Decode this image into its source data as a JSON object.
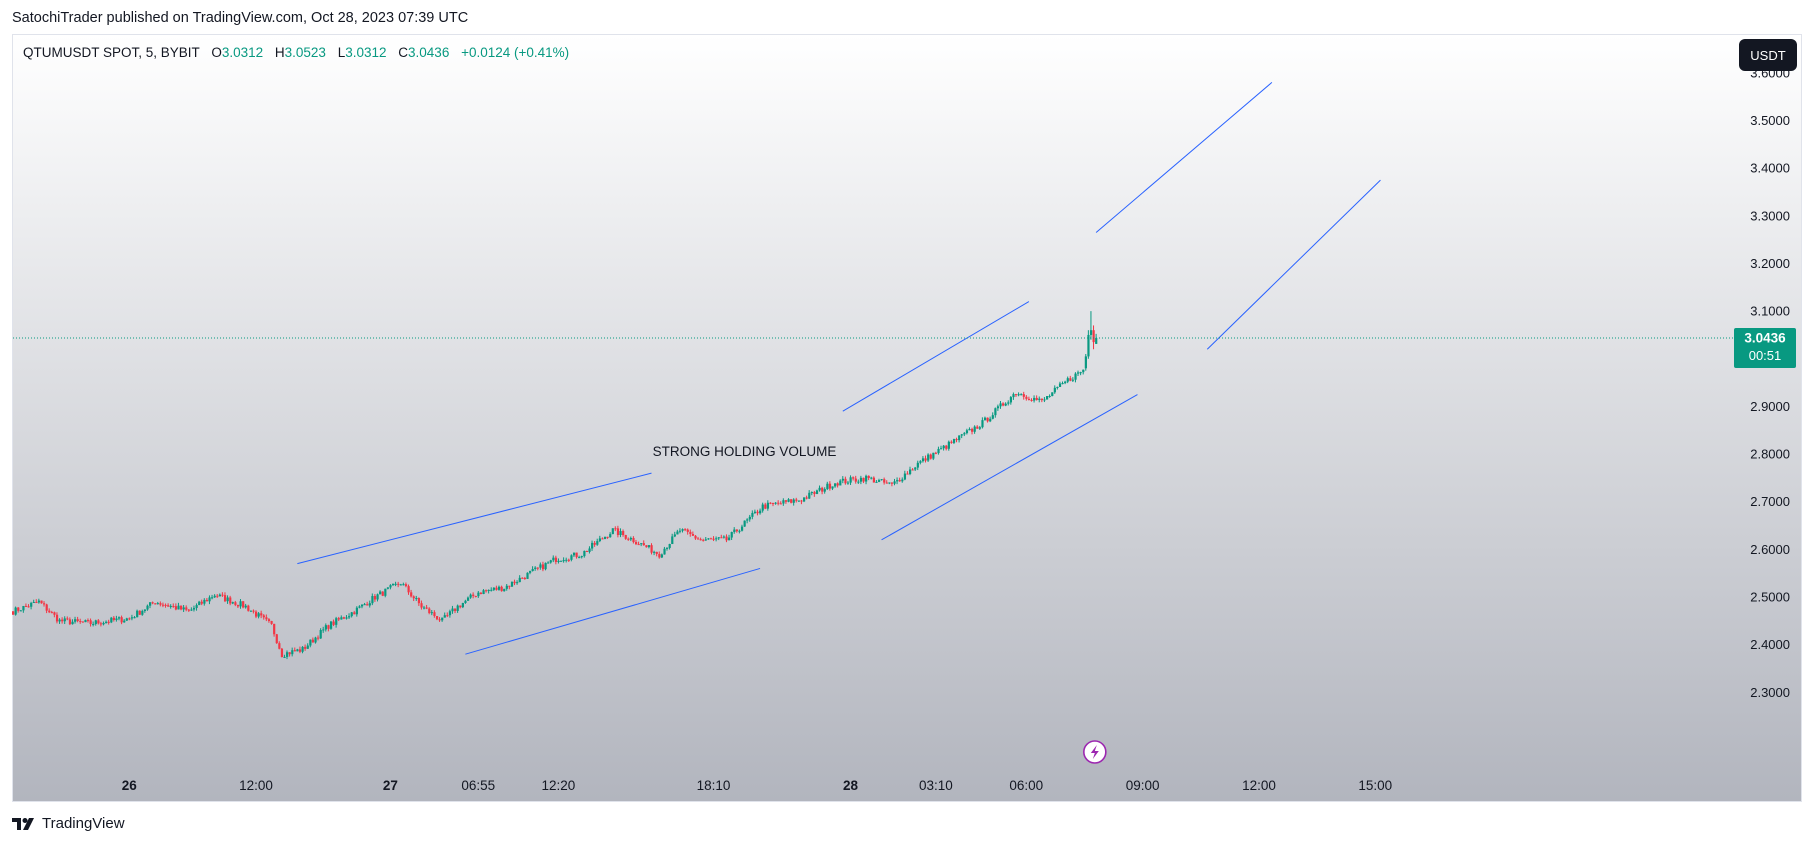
{
  "header": {
    "published_text": "SatochiTrader published on TradingView.com, Oct 28, 2023 07:39 UTC"
  },
  "legend": {
    "symbol": "QTUMUSDT SPOT, 5, BYBIT",
    "o_label": "O",
    "o_value": "3.0312",
    "h_label": "H",
    "h_value": "3.0523",
    "l_label": "L",
    "l_value": "3.0312",
    "c_label": "C",
    "c_value": "3.0436",
    "change": "+0.0124 (+0.41%)"
  },
  "currency_button": "USDT",
  "footer": {
    "brand": "TradingView"
  },
  "colors": {
    "up": "#089981",
    "down": "#f23645",
    "drawing": "#2962ff",
    "price_badge": "#089981",
    "bg_top": "#ffffff",
    "bg_bottom": "#b2b5be",
    "alert_icon": "#9c27b0"
  },
  "icons": {
    "alert": "lightning-alert-icon",
    "brand": "tradingview-logo-icon"
  },
  "chart_data": {
    "type": "candlestick",
    "ylim": [
      2.2,
      3.66
    ],
    "y_ticks": [
      "3.6000",
      "3.5000",
      "3.4000",
      "3.3000",
      "3.2000",
      "3.1000",
      "2.9000",
      "2.8000",
      "2.7000",
      "2.6000",
      "2.5000",
      "2.4000",
      "2.3000"
    ],
    "y_tick_values": [
      3.6,
      3.5,
      3.4,
      3.3,
      3.2,
      3.1,
      2.9,
      2.8,
      2.7,
      2.6,
      2.5,
      2.4,
      2.3
    ],
    "x_ticks": [
      {
        "label": "26",
        "i": 45,
        "bold": true
      },
      {
        "label": "12:00",
        "i": 94
      },
      {
        "label": "27",
        "i": 146,
        "bold": true
      },
      {
        "label": "06:55",
        "i": 180
      },
      {
        "label": "12:20",
        "i": 211
      },
      {
        "label": "18:10",
        "i": 271
      },
      {
        "label": "28",
        "i": 324,
        "bold": true
      },
      {
        "label": "03:10",
        "i": 357
      },
      {
        "label": "06:00",
        "i": 392
      },
      {
        "label": "09:00",
        "i": 437
      },
      {
        "label": "12:00",
        "i": 482
      },
      {
        "label": "15:00",
        "i": 527
      }
    ],
    "last_price": "3.0436",
    "last_value": 3.0436,
    "countdown": "00:51",
    "annotation": {
      "text": "STRONG HOLDING VOLUME",
      "i": 283,
      "y": 2.796
    },
    "anchors": [
      [
        0,
        2.47
      ],
      [
        10,
        2.49
      ],
      [
        18,
        2.45
      ],
      [
        30,
        2.445
      ],
      [
        45,
        2.455
      ],
      [
        55,
        2.49
      ],
      [
        68,
        2.47
      ],
      [
        78,
        2.505
      ],
      [
        90,
        2.48
      ],
      [
        100,
        2.44
      ],
      [
        104,
        2.38
      ],
      [
        112,
        2.39
      ],
      [
        122,
        2.44
      ],
      [
        132,
        2.47
      ],
      [
        140,
        2.5
      ],
      [
        150,
        2.53
      ],
      [
        158,
        2.48
      ],
      [
        166,
        2.45
      ],
      [
        172,
        2.48
      ],
      [
        180,
        2.51
      ],
      [
        190,
        2.52
      ],
      [
        200,
        2.55
      ],
      [
        210,
        2.58
      ],
      [
        220,
        2.59
      ],
      [
        232,
        2.64
      ],
      [
        240,
        2.62
      ],
      [
        250,
        2.59
      ],
      [
        258,
        2.64
      ],
      [
        266,
        2.62
      ],
      [
        276,
        2.62
      ],
      [
        290,
        2.69
      ],
      [
        305,
        2.705
      ],
      [
        318,
        2.74
      ],
      [
        330,
        2.75
      ],
      [
        340,
        2.735
      ],
      [
        350,
        2.78
      ],
      [
        362,
        2.82
      ],
      [
        375,
        2.865
      ],
      [
        388,
        2.93
      ],
      [
        398,
        2.91
      ],
      [
        408,
        2.955
      ],
      [
        415,
        2.98
      ],
      [
        418,
        3.045
      ]
    ],
    "candles": [
      [
        415,
        2.98,
        3.01,
        2.975,
        3.005
      ],
      [
        416,
        3.005,
        3.06,
        3.0,
        3.05
      ],
      [
        417,
        3.05,
        3.1,
        3.04,
        3.06
      ],
      [
        418,
        3.06,
        3.07,
        3.02,
        3.035
      ],
      [
        419,
        3.0312,
        3.0523,
        3.0312,
        3.0436
      ]
    ],
    "trend_lines": [
      {
        "from": [
          110,
          2.57
        ],
        "to": [
          247,
          2.76
        ]
      },
      {
        "from": [
          175,
          2.38
        ],
        "to": [
          289,
          2.56
        ]
      },
      {
        "from": [
          321,
          2.89
        ],
        "to": [
          393,
          3.12
        ]
      },
      {
        "from": [
          336,
          2.62
        ],
        "to": [
          435,
          2.925
        ]
      },
      {
        "from": [
          419,
          3.265
        ],
        "to": [
          487,
          3.58
        ]
      },
      {
        "from": [
          462,
          3.02
        ],
        "to": [
          529,
          3.375
        ]
      }
    ]
  }
}
